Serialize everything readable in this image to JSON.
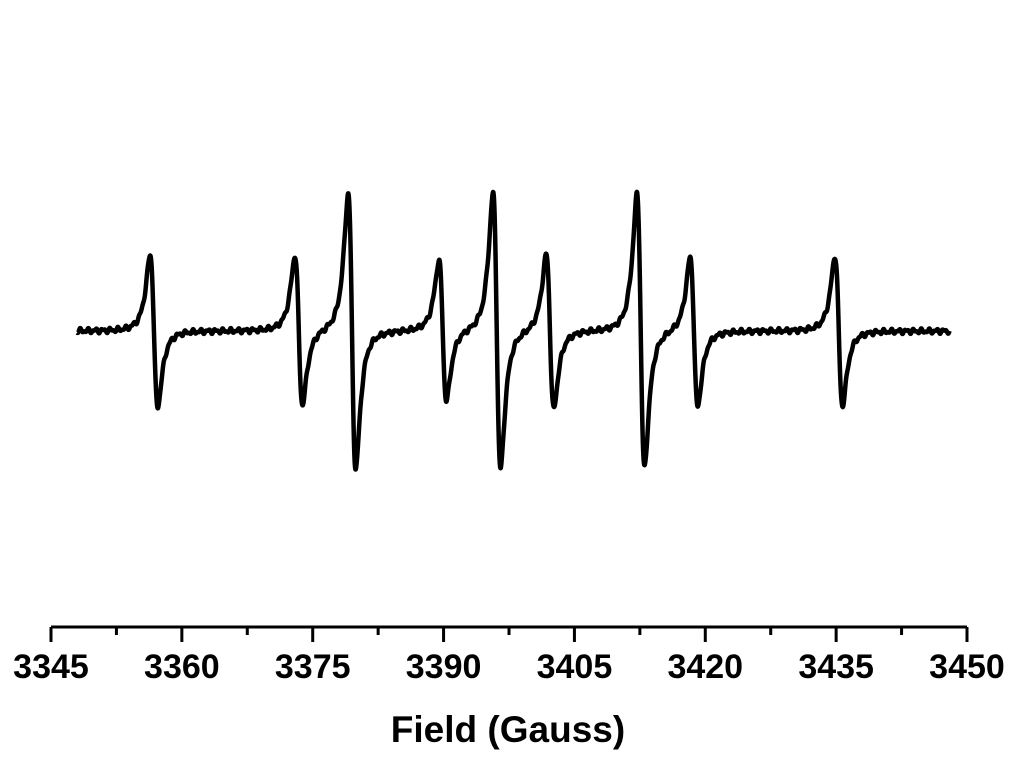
{
  "chart_data": {
    "type": "line",
    "title": "",
    "xlabel": "Field (Gauss)",
    "ylabel": "",
    "xlim": [
      3345,
      3450
    ],
    "x_ticks": [
      3345,
      3360,
      3375,
      3390,
      3405,
      3420,
      3435,
      3450
    ],
    "x_minor_step": 7.5,
    "y_axis_visible": false,
    "grid": false,
    "legend": "none",
    "line_color": "#000000",
    "data_range": [
      3348,
      3448
    ],
    "baseline": 0,
    "series": [
      {
        "lines": [
          {
            "center": 3356.8,
            "amplitude": 0.55
          },
          {
            "center": 3373.4,
            "amplitude": 0.54
          },
          {
            "center": 3379.5,
            "amplitude": 1.0
          },
          {
            "center": 3389.9,
            "amplitude": 0.51
          },
          {
            "center": 3396.1,
            "amplitude": 1.0
          },
          {
            "center": 3402.2,
            "amplitude": 0.56
          },
          {
            "center": 3412.6,
            "amplitude": 0.99
          },
          {
            "center": 3418.7,
            "amplitude": 0.54
          },
          {
            "center": 3435.3,
            "amplitude": 0.54
          }
        ]
      }
    ]
  }
}
